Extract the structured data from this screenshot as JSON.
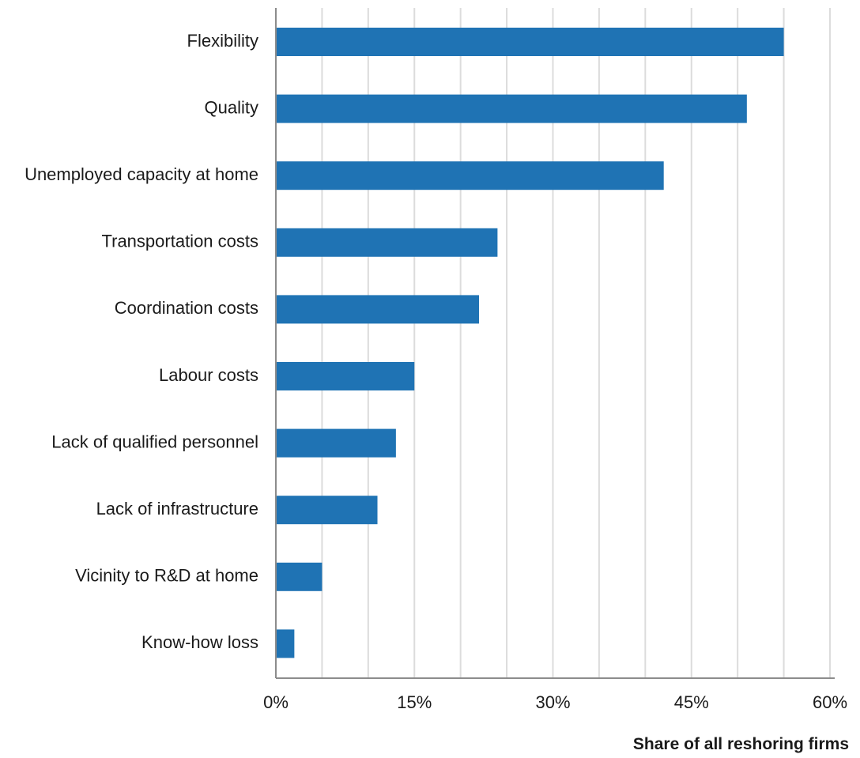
{
  "chart_data": {
    "type": "bar",
    "orientation": "horizontal",
    "title": "",
    "xlabel": "Share of all reshoring firms",
    "ylabel": "",
    "xlim": [
      0,
      60
    ],
    "xticks": [
      0,
      15,
      30,
      45,
      60
    ],
    "xtick_labels": [
      "0%",
      "15%",
      "30%",
      "45%",
      "60%"
    ],
    "grid_step": 5,
    "grid": true,
    "legend": "none",
    "bar_color": "#1f73b4",
    "categories": [
      "Flexibility",
      "Quality",
      "Unemployed capacity at home",
      "Transportation costs",
      "Coordination costs",
      "Labour costs",
      "Lack of qualified personnel",
      "Lack of infrastructure",
      "Vicinity to R&D at home",
      "Know-how loss"
    ],
    "values": [
      55,
      51,
      42,
      24,
      22,
      15,
      13,
      11,
      5,
      2
    ]
  }
}
